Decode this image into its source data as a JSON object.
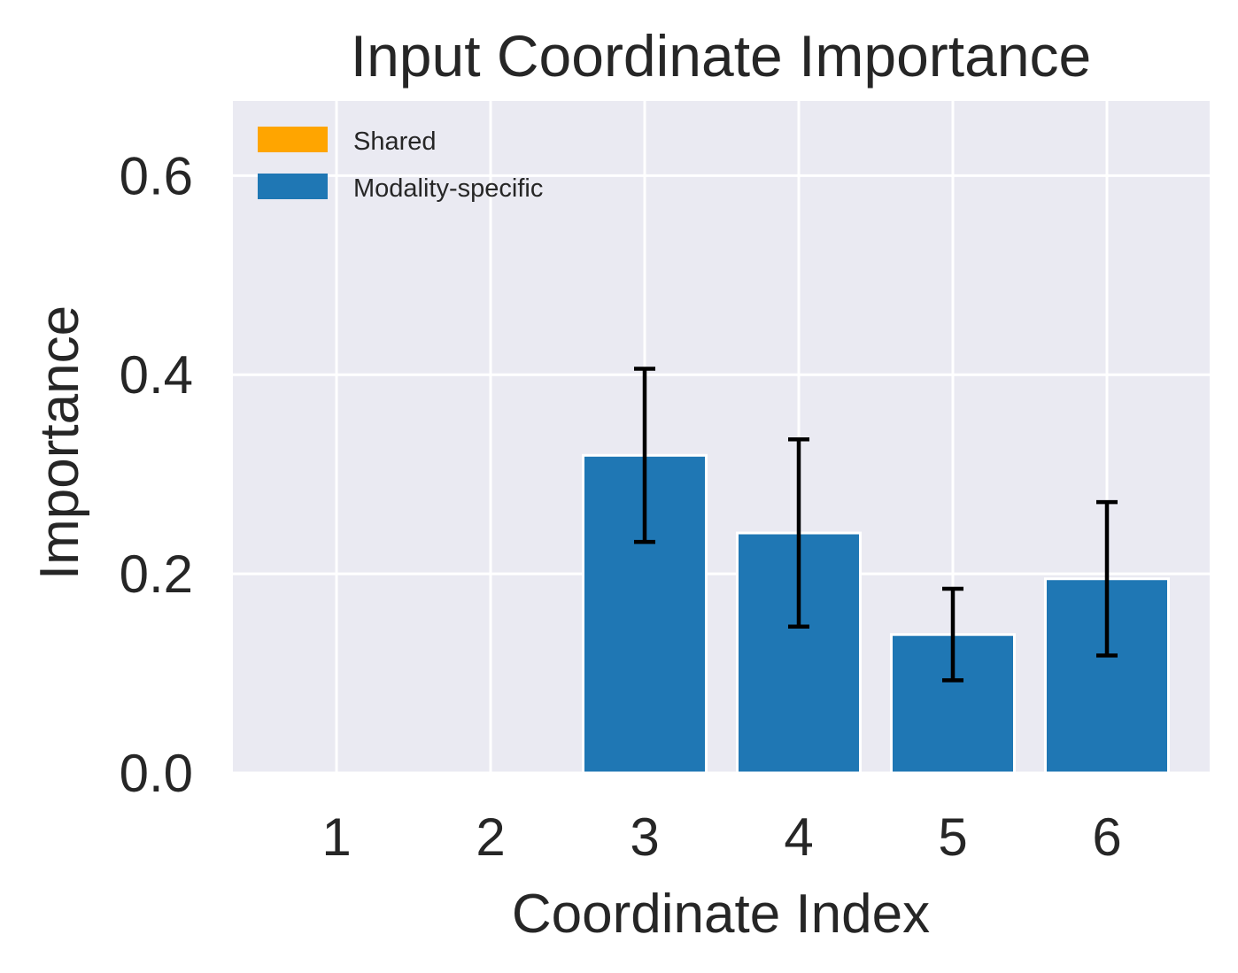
{
  "chart_data": {
    "type": "bar",
    "title": "Input Coordinate Importance",
    "xlabel": "Coordinate Index",
    "ylabel": "Importance",
    "categories": [
      "1",
      "2",
      "3",
      "4",
      "5",
      "6"
    ],
    "ylim": [
      0,
      0.675
    ],
    "yticks": [
      0.0,
      0.2,
      0.4,
      0.6
    ],
    "ytick_labels": [
      "0.0",
      "0.2",
      "0.4",
      "0.6"
    ],
    "grid": true,
    "legend_position": "top-left",
    "series": [
      {
        "name": "Shared",
        "color": "#FFA500",
        "values": [
          0,
          0,
          0,
          0,
          0,
          0
        ],
        "errors": [
          0,
          0,
          0,
          0,
          0,
          0
        ]
      },
      {
        "name": "Modality-specific",
        "color": "#1F77B4",
        "values": [
          0,
          0,
          0.319,
          0.241,
          0.139,
          0.195
        ],
        "errors": [
          0,
          0,
          0.087,
          0.094,
          0.046,
          0.077
        ]
      }
    ],
    "colors": {
      "plot_background": "#EAEAF2",
      "grid": "#FFFFFF",
      "error_bar": "#000000",
      "text": "#262626"
    }
  }
}
